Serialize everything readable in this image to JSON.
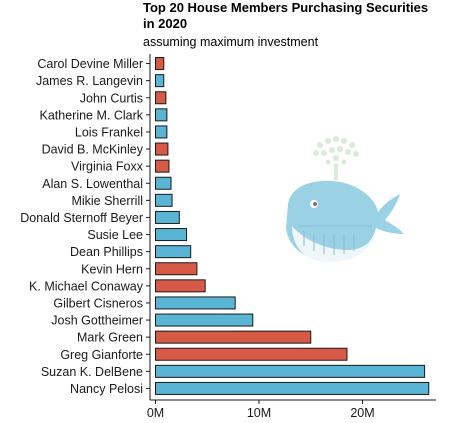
{
  "chart_data": {
    "type": "bar",
    "orientation": "horizontal",
    "title": "Top 20 House Members Purchasing Securities in 2020",
    "subtitle": "assuming maximum investment",
    "xlabel": "",
    "ylabel": "",
    "xlim": [
      0,
      27
    ],
    "x_ticks": [
      0,
      10,
      20
    ],
    "x_tick_labels": [
      "0M",
      "10M",
      "20M"
    ],
    "value_unit": "millions of dollars",
    "grid": false,
    "legend": "none",
    "colors": {
      "Democrat": "#5ab4d4",
      "Republican": "#d65a45",
      "outline": "#1a1a1a"
    },
    "categories": [
      "Carol Devine Miller",
      "James R. Langevin",
      "John Curtis",
      "Katherine M. Clark",
      "Lois Frankel",
      "David B. McKinley",
      "Virginia Foxx",
      "Alan S. Lowenthal",
      "Mikie Sherrill",
      "Donald Sternoff Beyer",
      "Susie Lee",
      "Dean Phillips",
      "Kevin Hern",
      "K. Michael Conaway",
      "Gilbert Cisneros",
      "Josh Gottheimer",
      "Mark Green",
      "Greg Gianforte",
      "Suzan K. DelBene",
      "Nancy Pelosi"
    ],
    "values": [
      0.8,
      0.8,
      1.0,
      1.1,
      1.1,
      1.2,
      1.3,
      1.5,
      1.6,
      2.3,
      3.0,
      3.4,
      4.0,
      4.8,
      7.7,
      9.4,
      15.0,
      18.5,
      26.0,
      26.4
    ],
    "party": [
      "R",
      "D",
      "R",
      "D",
      "D",
      "R",
      "R",
      "D",
      "D",
      "D",
      "D",
      "D",
      "R",
      "R",
      "D",
      "D",
      "R",
      "R",
      "D",
      "D"
    ]
  },
  "decoration": {
    "icon": "whale-icon"
  }
}
